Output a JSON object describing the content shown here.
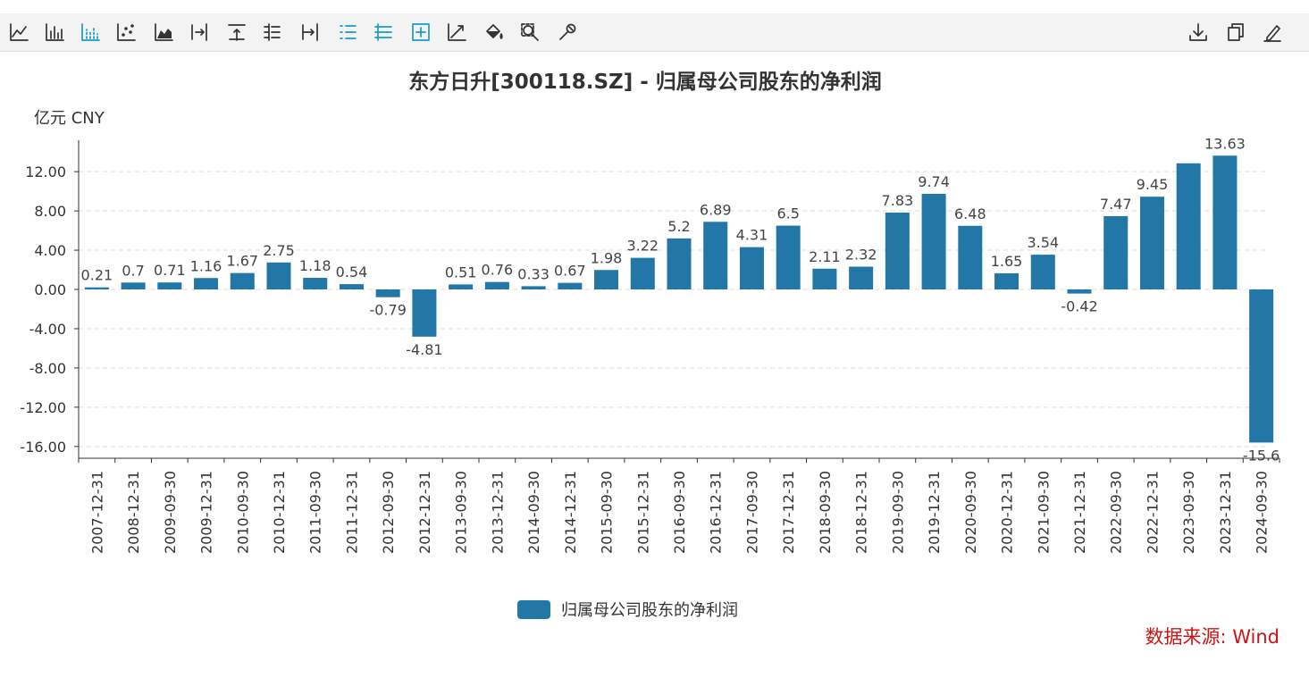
{
  "toolbar": {
    "left_tools": [
      {
        "name": "line-chart-icon",
        "active": false
      },
      {
        "name": "bar-chart-icon",
        "active": false
      },
      {
        "name": "dotted-bar-icon",
        "active": true
      },
      {
        "name": "scatter-icon",
        "active": false
      },
      {
        "name": "area-chart-icon",
        "active": false
      },
      {
        "name": "align-right-icon",
        "active": false
      },
      {
        "name": "align-top-icon",
        "active": false
      },
      {
        "name": "tree-list-icon",
        "active": false
      },
      {
        "name": "arrow-to-line-icon",
        "active": false
      },
      {
        "name": "list-icon",
        "active": true
      },
      {
        "name": "stack-icon",
        "active": true
      },
      {
        "name": "add-box-icon",
        "active": true
      },
      {
        "name": "trend-icon",
        "active": false
      },
      {
        "name": "fill-bucket-icon",
        "active": false
      },
      {
        "name": "zoom-icon",
        "active": false
      },
      {
        "name": "wrench-icon",
        "active": false
      }
    ],
    "right_tools": [
      {
        "name": "download-icon"
      },
      {
        "name": "copy-icon"
      },
      {
        "name": "edit-icon"
      }
    ]
  },
  "chart_data": {
    "type": "bar",
    "title": "东方日升[300118.SZ] - 归属母公司股东的净利润",
    "unit_label": "亿元  CNY",
    "categories": [
      "2007-12-31",
      "2008-12-31",
      "2009-09-30",
      "2009-12-31",
      "2010-09-30",
      "2010-12-31",
      "2011-09-30",
      "2011-12-31",
      "2012-09-30",
      "2012-12-31",
      "2013-09-30",
      "2013-12-31",
      "2014-09-30",
      "2014-12-31",
      "2015-09-30",
      "2015-12-31",
      "2016-09-30",
      "2016-12-31",
      "2017-09-30",
      "2017-12-31",
      "2018-09-30",
      "2018-12-31",
      "2019-09-30",
      "2019-12-31",
      "2020-09-30",
      "2020-12-31",
      "2021-09-30",
      "2021-12-31",
      "2022-09-30",
      "2022-12-31",
      "2023-09-30",
      "2023-12-31",
      "2024-09-30"
    ],
    "series": [
      {
        "name": "归属母公司股东的净利润",
        "color": "#2277a6",
        "values": [
          0.21,
          0.7,
          0.71,
          1.16,
          1.67,
          2.75,
          1.18,
          0.54,
          -0.79,
          -4.81,
          0.51,
          0.76,
          0.33,
          0.67,
          1.98,
          3.22,
          5.2,
          6.89,
          4.31,
          6.5,
          2.11,
          2.32,
          7.83,
          9.74,
          6.48,
          1.65,
          3.54,
          -0.42,
          7.47,
          9.45,
          12.85,
          13.63,
          -15.6
        ],
        "labels": [
          "0.21",
          "0.7",
          "0.71",
          "1.16",
          "1.67",
          "2.75",
          "1.18",
          "0.54",
          "-0.79",
          "-4.81",
          "0.51",
          "0.76",
          "0.33",
          "0.67",
          "1.98",
          "3.22",
          "5.2",
          "6.89",
          "4.31",
          "6.5",
          "2.11",
          "2.32",
          "7.83",
          "9.74",
          "6.48",
          "1.65",
          "3.54",
          "-0.42",
          "7.47",
          "9.45",
          "",
          "13.63",
          "-15.6"
        ]
      }
    ],
    "yticks": [
      "12.00",
      "8.00",
      "4.00",
      "0.00",
      "-4.00",
      "-8.00",
      "-12.00",
      "-16.00"
    ],
    "ytick_values": [
      12,
      8,
      4,
      0,
      -4,
      -8,
      -12,
      -16
    ],
    "ylim": [
      -17.2,
      15.2
    ],
    "grid": true,
    "legend_position": "bottom-center",
    "source": "数据来源: Wind"
  }
}
